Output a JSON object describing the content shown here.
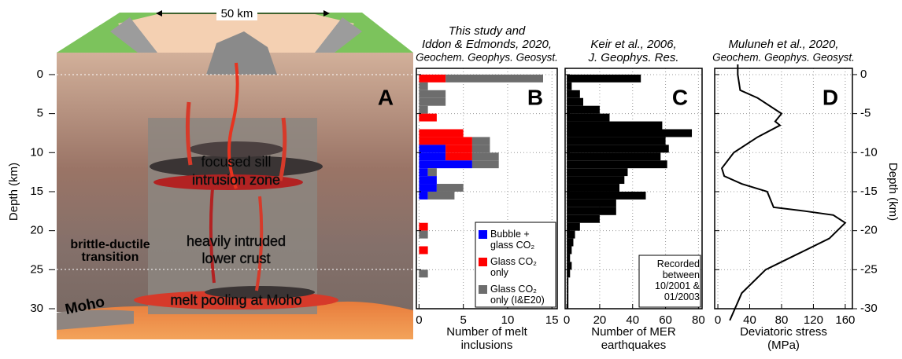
{
  "chart_data": [
    {
      "type": "diagram",
      "panel": "A",
      "ylim": [
        -0.8,
        30
      ],
      "yticks": [
        0,
        5,
        10,
        15,
        20,
        25,
        30
      ],
      "ylabel": "Depth (km)",
      "scale_label": "50 km",
      "annotations": [
        "focused sill",
        "intrusion zone",
        "heavily intruded",
        "lower crust",
        "melt pooling at Moho",
        "brittle-ductile",
        "transition",
        "Moho"
      ]
    },
    {
      "type": "histogram",
      "panel": "B",
      "title": [
        "This study and",
        "Iddon & Edmonds, 2020,",
        "Geochem. Geophys. Geosyst."
      ],
      "xlabel": "Number of melt inclusions",
      "bins": [
        0,
        1,
        2,
        3,
        4,
        5,
        6,
        7,
        8,
        9,
        10,
        11,
        12,
        13,
        14,
        15,
        16,
        17,
        18,
        19,
        20,
        21,
        22,
        23,
        24,
        25,
        26,
        27,
        28,
        29,
        30
      ],
      "series": [
        {
          "name": "Bubble + glass CO₂",
          "color": "#0000ff",
          "values": [
            0,
            0,
            0,
            0,
            0,
            0,
            0,
            0,
            0,
            3,
            3,
            6,
            1,
            2,
            2,
            1,
            0,
            0,
            0,
            0,
            0,
            0,
            0,
            0,
            0,
            0,
            0,
            0,
            0,
            0
          ]
        },
        {
          "name": "Glass CO₂ only",
          "color": "#ff0000",
          "values": [
            3,
            0,
            0,
            0,
            0,
            2,
            0,
            5,
            6,
            3,
            3,
            0,
            0,
            0,
            0,
            0,
            0,
            0,
            0,
            1,
            0,
            0,
            1,
            0,
            0,
            0,
            0,
            0,
            0,
            0
          ]
        },
        {
          "name": "Glass CO₂ only (I&E20)",
          "color": "#6d6d6d",
          "values": [
            11,
            1,
            3,
            3,
            1,
            0,
            0,
            0,
            2,
            2,
            3,
            3,
            1,
            0,
            3,
            3,
            0,
            0,
            0,
            0,
            1,
            0,
            0,
            0,
            0,
            1,
            0,
            0,
            0,
            0
          ]
        }
      ],
      "xlim": [
        -0.3,
        15.6
      ],
      "xticks": [
        0,
        5,
        10,
        15
      ],
      "grid": true,
      "legend": "lower right"
    },
    {
      "type": "histogram",
      "panel": "C",
      "title": [
        "Keir et al., 2006,",
        "J. Geophys. Res."
      ],
      "xlabel": "Number of MER earthquakes",
      "note": "Recorded between 10/2001 & 01/2003",
      "bins": [
        0,
        1,
        2,
        3,
        4,
        5,
        6,
        7,
        8,
        9,
        10,
        11,
        12,
        13,
        14,
        15,
        16,
        17,
        18,
        19,
        20,
        21,
        22,
        23,
        24,
        25,
        26,
        27,
        28,
        29,
        30
      ],
      "color": "#000000",
      "values": [
        45,
        3,
        8,
        10,
        20,
        26,
        58,
        76,
        60,
        62,
        57,
        61,
        37,
        35,
        32,
        48,
        30,
        30,
        20,
        8,
        5,
        4,
        3,
        2,
        3,
        2,
        1,
        1,
        1,
        1
      ],
      "xlim": [
        -1,
        82.2
      ],
      "xticks": [
        0,
        20,
        40,
        60,
        80
      ],
      "grid": true
    },
    {
      "type": "line",
      "panel": "D",
      "title": [
        "Muluneh et al., 2020,",
        "Geochem. Geophys. Geosyst."
      ],
      "xlabel": "Deviatoric stress (MPa)",
      "values": [
        25,
        25,
        28,
        50,
        80,
        72,
        78,
        50,
        20,
        5,
        8,
        30,
        62,
        70,
        110,
        145,
        160,
        140,
        100,
        60,
        30,
        15
      ],
      "depth": [
        -1.3,
        0,
        2,
        3,
        5,
        6,
        6.5,
        8,
        10,
        12,
        13,
        14,
        15,
        17,
        17.5,
        18,
        19,
        21,
        23,
        25,
        28,
        31.5
      ],
      "color": "#000000",
      "xlim": [
        -4,
        169
      ],
      "xticks": [
        0,
        40,
        80,
        120,
        160
      ],
      "grid": true,
      "yticks": [
        0,
        {
          "value": 5,
          "label": "-5"
        },
        {
          "value": 10,
          "label": "-10"
        },
        {
          "value": 15,
          "label": "-15"
        },
        {
          "value": 20,
          "label": "-20"
        },
        {
          "value": 25,
          "label": "-25"
        },
        {
          "value": 30,
          "label": "-30"
        }
      ],
      "y2label": "Depth (km)"
    }
  ]
}
